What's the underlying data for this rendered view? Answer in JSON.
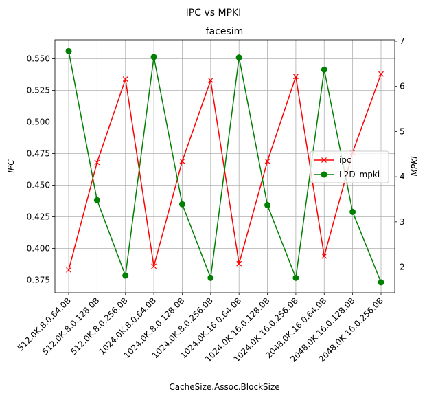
{
  "chart_data": {
    "type": "line",
    "suptitle": "IPC vs MPKI",
    "title": "facesim",
    "xlabel": "CacheSize.Assoc.BlockSize",
    "ylabel_left": "IPC",
    "ylabel_right": "MPKI",
    "categories": [
      "512.0K.8.0.64.0B",
      "512.0K.8.0.128.0B",
      "512.0K.8.0.256.0B",
      "1024.0K.8.0.64.0B",
      "1024.0K.8.0.128.0B",
      "1024.0K.8.0.256.0B",
      "1024.0K.16.0.64.0B",
      "1024.0K.16.0.128.0B",
      "1024.0K.16.0.256.0B",
      "2048.0K.16.0.64.0B",
      "2048.0K.16.0.128.0B",
      "2048.0K.16.0.256.0B"
    ],
    "ylim_left": [
      0.365,
      0.565
    ],
    "ylim_right": [
      1.43,
      7.03
    ],
    "yticks_left": [
      "0.375",
      "0.400",
      "0.425",
      "0.450",
      "0.475",
      "0.500",
      "0.525",
      "0.550"
    ],
    "yticks_right": [
      "2",
      "3",
      "4",
      "5",
      "6",
      "7"
    ],
    "grid": true,
    "legend_position": "center-right",
    "series": [
      {
        "name": "ipc",
        "axis": "left",
        "color": "#ff0000",
        "marker": "x",
        "values": [
          0.383,
          0.468,
          0.534,
          0.386,
          0.469,
          0.533,
          0.388,
          0.469,
          0.536,
          0.394,
          0.476,
          0.538
        ]
      },
      {
        "name": "L2D_mpki",
        "axis": "right",
        "color": "#008000",
        "marker": "o",
        "values": [
          6.78,
          3.48,
          1.81,
          6.65,
          3.39,
          1.76,
          6.64,
          3.37,
          1.76,
          6.37,
          3.22,
          1.66
        ]
      }
    ]
  }
}
